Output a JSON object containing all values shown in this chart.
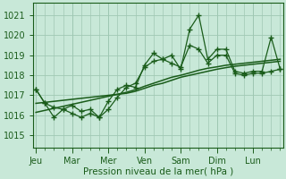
{
  "background_color": "#c8e8d8",
  "grid_color": "#a0c8b4",
  "line_color": "#1a5c1a",
  "xlabel": "Pression niveau de la mer( hPa )",
  "ylim": [
    1014.4,
    1021.6
  ],
  "yticks": [
    1015,
    1016,
    1017,
    1018,
    1019,
    1020,
    1021
  ],
  "x_day_labels": [
    "Jeu",
    "Mar",
    "Mer",
    "Ven",
    "Sam",
    "Dim",
    "Lun"
  ],
  "x_day_positions": [
    0,
    4,
    8,
    12,
    16,
    20,
    24
  ],
  "xlim": [
    -0.3,
    27.3
  ],
  "series1": [
    1017.3,
    1016.6,
    1015.9,
    1016.3,
    1016.5,
    1016.2,
    1016.3,
    1015.9,
    1016.7,
    1017.3,
    1017.5,
    1017.4,
    1018.5,
    1019.1,
    1018.8,
    1019.0,
    1018.3,
    1020.3,
    1021.0,
    1018.8,
    1019.3,
    1019.3,
    1018.2,
    1018.1,
    1018.2,
    1018.2,
    1019.9,
    1018.3
  ],
  "series2": [
    1017.3,
    1016.6,
    1016.4,
    1016.3,
    1016.1,
    1015.9,
    1016.1,
    1015.9,
    1016.3,
    1016.9,
    1017.4,
    1017.6,
    1018.4,
    1018.7,
    1018.8,
    1018.6,
    1018.4,
    1019.5,
    1019.3,
    1018.6,
    1019.0,
    1019.0,
    1018.1,
    1018.0,
    1018.1,
    1018.1,
    1018.2,
    1018.3
  ],
  "trend1": [
    1016.6,
    1016.65,
    1016.7,
    1016.75,
    1016.8,
    1016.85,
    1016.9,
    1016.95,
    1017.0,
    1017.05,
    1017.1,
    1017.2,
    1017.35,
    1017.5,
    1017.6,
    1017.75,
    1017.9,
    1018.0,
    1018.1,
    1018.2,
    1018.3,
    1018.38,
    1018.45,
    1018.5,
    1018.55,
    1018.6,
    1018.65,
    1018.7
  ],
  "trend2": [
    1016.15,
    1016.25,
    1016.35,
    1016.45,
    1016.55,
    1016.65,
    1016.75,
    1016.85,
    1016.95,
    1017.05,
    1017.15,
    1017.28,
    1017.45,
    1017.6,
    1017.75,
    1017.9,
    1018.0,
    1018.12,
    1018.25,
    1018.35,
    1018.42,
    1018.5,
    1018.55,
    1018.6,
    1018.65,
    1018.7,
    1018.75,
    1018.8
  ],
  "n_points": 28,
  "marker_size": 2.8,
  "line_width": 0.9,
  "xlabel_fontsize": 7.5,
  "tick_fontsize": 7
}
